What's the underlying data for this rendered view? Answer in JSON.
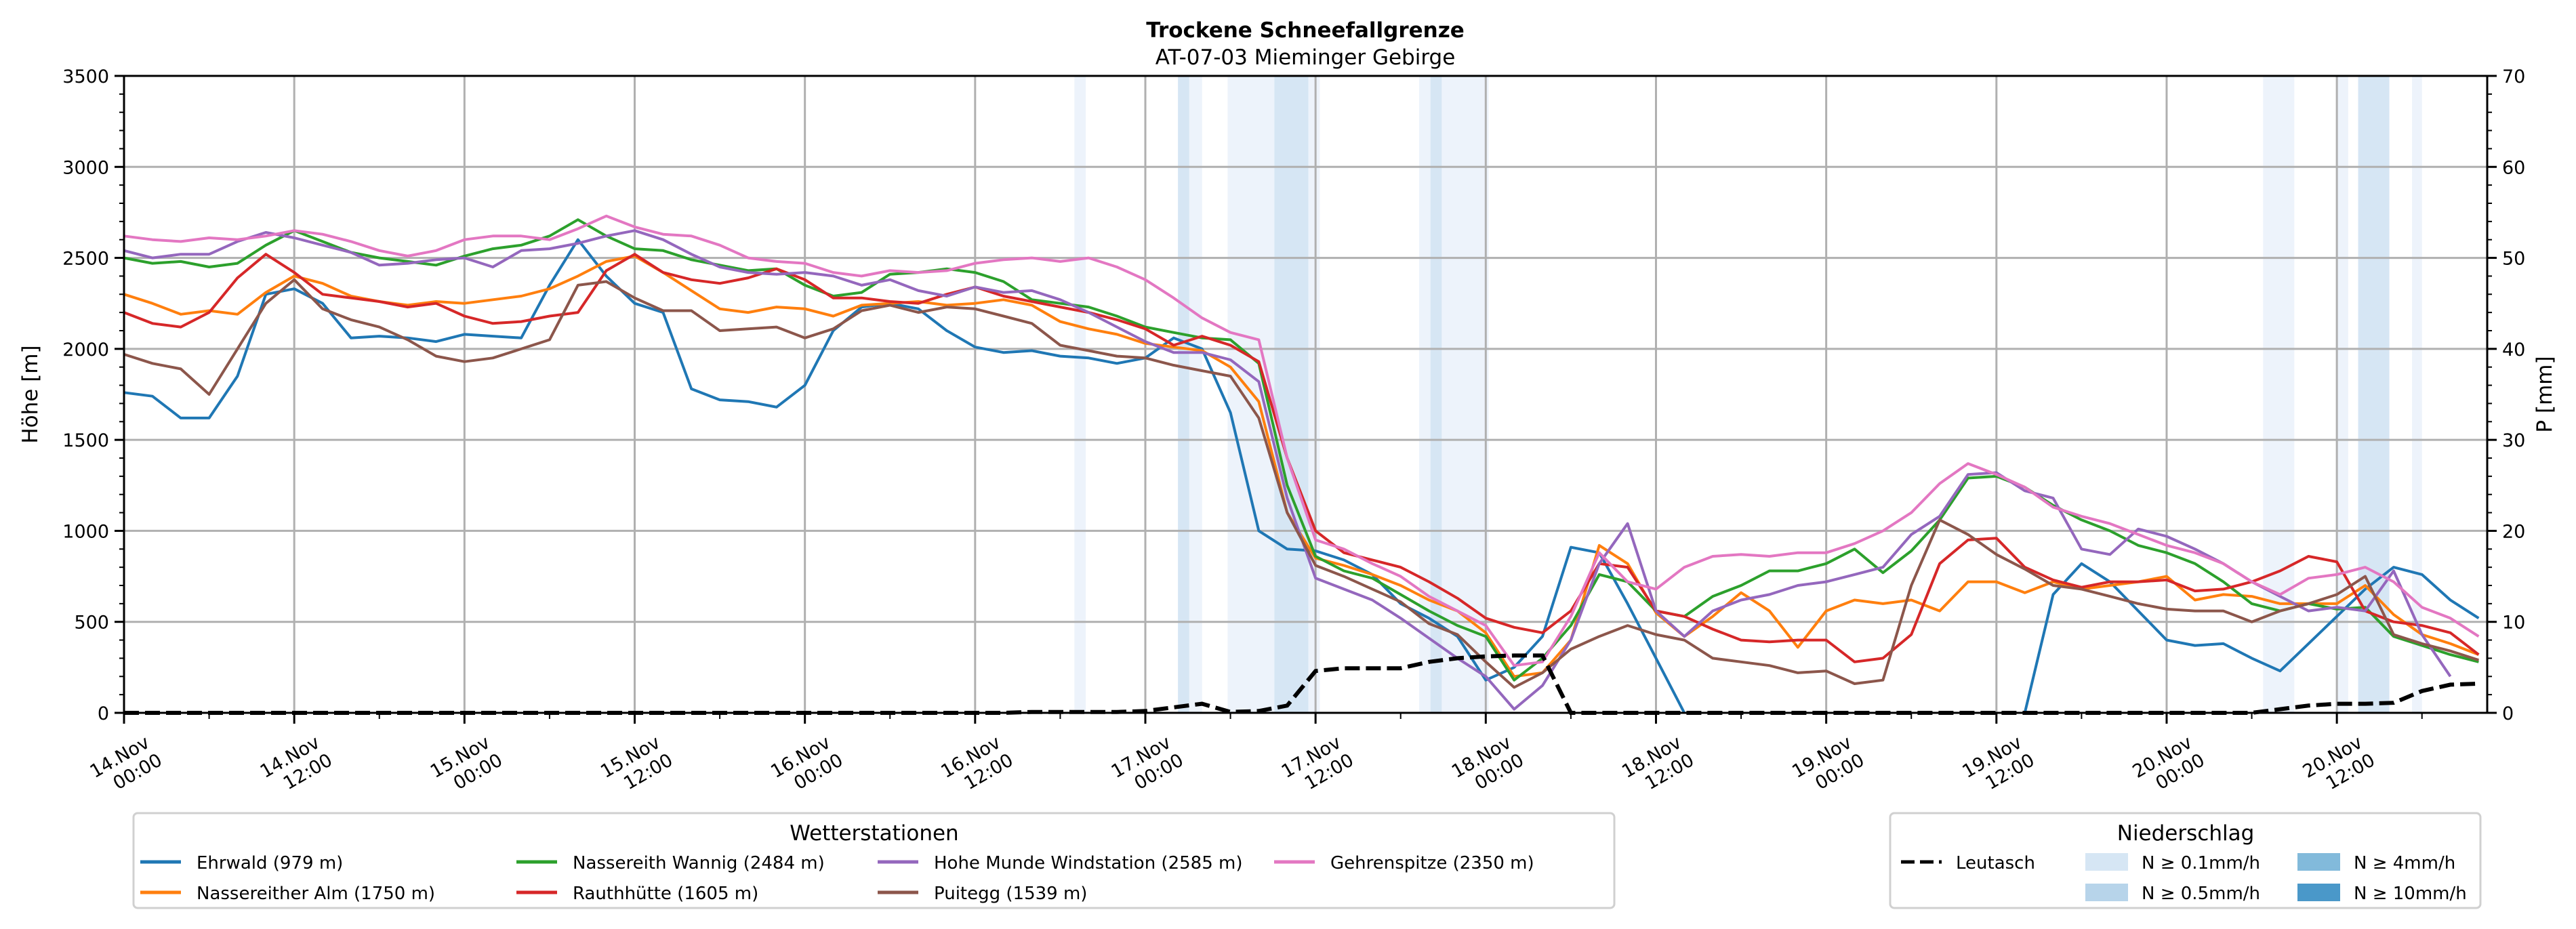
{
  "chart_data": {
    "type": "line",
    "title": "Trockene Schneefallgrenze",
    "subtitle": "AT-07-03 Mieminger Gebirge",
    "ylabel": "Höhe [m]",
    "y2label": "P [mm]",
    "ylim": [
      0,
      3500
    ],
    "y2lim": [
      0,
      70
    ],
    "yticks": [
      0,
      500,
      1000,
      1500,
      2000,
      2500,
      3000,
      3500
    ],
    "y2ticks": [
      0,
      10,
      20,
      30,
      40,
      50,
      60,
      70
    ],
    "grid": true,
    "x_unit": "hours since 14.Nov 00:00",
    "xlim": [
      0,
      166.6
    ],
    "xticks": [
      {
        "hour": 0,
        "line1": "14.Nov",
        "line2": "00:00"
      },
      {
        "hour": 12,
        "line1": "14.Nov",
        "line2": "12:00"
      },
      {
        "hour": 24,
        "line1": "15.Nov",
        "line2": "00:00"
      },
      {
        "hour": 36,
        "line1": "15.Nov",
        "line2": "12:00"
      },
      {
        "hour": 48,
        "line1": "16.Nov",
        "line2": "00:00"
      },
      {
        "hour": 60,
        "line1": "16.Nov",
        "line2": "12:00"
      },
      {
        "hour": 72,
        "line1": "17.Nov",
        "line2": "00:00"
      },
      {
        "hour": 84,
        "line1": "17.Nov",
        "line2": "12:00"
      },
      {
        "hour": 96,
        "line1": "18.Nov",
        "line2": "00:00"
      },
      {
        "hour": 108,
        "line1": "18.Nov",
        "line2": "12:00"
      },
      {
        "hour": 120,
        "line1": "19.Nov",
        "line2": "00:00"
      },
      {
        "hour": 132,
        "line1": "19.Nov",
        "line2": "12:00"
      },
      {
        "hour": 144,
        "line1": "20.Nov",
        "line2": "00:00"
      },
      {
        "hour": 156,
        "line1": "20.Nov",
        "line2": "12:00"
      }
    ],
    "x": [
      0,
      2,
      4,
      6,
      8,
      10,
      12,
      14,
      16,
      18,
      20,
      22,
      24,
      26,
      28,
      30,
      32,
      34,
      36,
      38,
      40,
      42,
      44,
      46,
      48,
      50,
      52,
      54,
      56,
      58,
      60,
      62,
      64,
      66,
      68,
      70,
      72,
      74,
      76,
      78,
      80,
      82,
      84,
      86,
      88,
      90,
      92,
      94,
      96,
      98,
      100,
      102,
      104,
      106,
      108,
      110,
      112,
      114,
      116,
      118,
      120,
      122,
      124,
      126,
      128,
      130,
      132,
      134,
      136,
      138,
      140,
      142,
      144,
      146,
      148,
      150,
      152,
      154,
      156,
      158,
      160,
      162,
      164,
      166
    ],
    "series": [
      {
        "name": "Ehrwald (979 m)",
        "color": "#1f77b4",
        "values": [
          1760,
          1740,
          1620,
          1620,
          1850,
          2300,
          2330,
          2250,
          2060,
          2070,
          2060,
          2040,
          2080,
          2070,
          2060,
          2350,
          2600,
          2400,
          2250,
          2200,
          1780,
          1720,
          1710,
          1680,
          1800,
          2100,
          2230,
          2250,
          2220,
          2100,
          2010,
          1980,
          1990,
          1960,
          1950,
          1920,
          1950,
          2060,
          2000,
          1650,
          1000,
          900,
          890,
          840,
          760,
          600,
          520,
          420,
          180,
          250,
          420,
          910,
          880,
          600,
          300,
          0,
          null,
          null,
          null,
          null,
          null,
          null,
          null,
          null,
          null,
          null,
          null,
          0,
          650,
          820,
          720,
          560,
          400,
          370,
          380,
          300,
          230,
          380,
          530,
          680,
          800,
          760,
          620,
          520
        ]
      },
      {
        "name": "Nassereither Alm (1750 m)",
        "color": "#ff7f0e",
        "values": [
          2300,
          2250,
          2190,
          2210,
          2190,
          2310,
          2400,
          2360,
          2290,
          2260,
          2240,
          2260,
          2250,
          2270,
          2290,
          2330,
          2400,
          2480,
          2510,
          2420,
          2320,
          2220,
          2200,
          2230,
          2220,
          2180,
          2240,
          2250,
          2260,
          2240,
          2250,
          2270,
          2240,
          2150,
          2110,
          2080,
          2030,
          2010,
          1990,
          1900,
          1710,
          1100,
          850,
          810,
          760,
          700,
          620,
          560,
          440,
          200,
          220,
          400,
          920,
          820,
          550,
          420,
          530,
          660,
          560,
          360,
          560,
          620,
          600,
          620,
          560,
          720,
          720,
          660,
          720,
          680,
          700,
          720,
          750,
          620,
          650,
          640,
          600,
          600,
          600,
          700,
          540,
          430,
          380,
          320
        ]
      },
      {
        "name": "Nassereith Wannig (2484 m)",
        "color": "#2ca02c",
        "values": [
          2500,
          2470,
          2480,
          2450,
          2470,
          2570,
          2650,
          2590,
          2530,
          2500,
          2480,
          2460,
          2510,
          2550,
          2570,
          2620,
          2710,
          2620,
          2550,
          2540,
          2490,
          2460,
          2430,
          2440,
          2350,
          2290,
          2310,
          2410,
          2420,
          2440,
          2420,
          2370,
          2270,
          2250,
          2230,
          2180,
          2120,
          2090,
          2060,
          2050,
          1920,
          1250,
          860,
          780,
          740,
          650,
          560,
          480,
          420,
          180,
          300,
          480,
          760,
          720,
          560,
          530,
          640,
          700,
          780,
          780,
          820,
          900,
          770,
          890,
          1060,
          1290,
          1300,
          1240,
          1140,
          1060,
          1000,
          920,
          880,
          820,
          720,
          600,
          560,
          600,
          570,
          580,
          420,
          370,
          320,
          280
        ]
      },
      {
        "name": "Rauthhütte (1605 m)",
        "color": "#d62728",
        "values": [
          2200,
          2140,
          2120,
          2200,
          2390,
          2520,
          2420,
          2300,
          2280,
          2260,
          2230,
          2250,
          2180,
          2140,
          2150,
          2180,
          2200,
          2430,
          2520,
          2420,
          2380,
          2360,
          2390,
          2440,
          2380,
          2280,
          2280,
          2260,
          2250,
          2300,
          2340,
          2290,
          2260,
          2230,
          2200,
          2160,
          2110,
          2020,
          2070,
          2020,
          1930,
          1400,
          1000,
          880,
          840,
          800,
          720,
          630,
          520,
          470,
          440,
          560,
          820,
          800,
          560,
          530,
          460,
          400,
          390,
          400,
          400,
          280,
          300,
          430,
          820,
          950,
          960,
          800,
          730,
          690,
          720,
          720,
          730,
          670,
          680,
          720,
          780,
          860,
          830,
          560,
          500,
          480,
          440,
          320
        ]
      },
      {
        "name": "Hohe Munde Windstation (2585 m)",
        "color": "#9467bd",
        "values": [
          2540,
          2500,
          2520,
          2520,
          2590,
          2640,
          2610,
          2570,
          2530,
          2460,
          2470,
          2490,
          2500,
          2450,
          2540,
          2550,
          2580,
          2620,
          2650,
          2600,
          2520,
          2450,
          2420,
          2410,
          2420,
          2400,
          2350,
          2380,
          2320,
          2290,
          2340,
          2310,
          2320,
          2270,
          2200,
          2120,
          2040,
          1980,
          1980,
          1940,
          1820,
          1180,
          740,
          680,
          620,
          520,
          410,
          300,
          200,
          20,
          150,
          400,
          820,
          1040,
          560,
          420,
          560,
          620,
          650,
          700,
          720,
          760,
          800,
          980,
          1080,
          1310,
          1320,
          1220,
          1180,
          900,
          870,
          1010,
          970,
          900,
          820,
          720,
          640,
          560,
          580,
          560,
          780,
          430,
          200,
          null
        ]
      },
      {
        "name": "Puitegg (1539 m)",
        "color": "#8c564b",
        "values": [
          1970,
          1920,
          1890,
          1750,
          2000,
          2250,
          2380,
          2220,
          2160,
          2120,
          2050,
          1960,
          1930,
          1950,
          2000,
          2050,
          2350,
          2370,
          2280,
          2210,
          2210,
          2100,
          2110,
          2120,
          2060,
          2110,
          2210,
          2240,
          2200,
          2230,
          2220,
          2180,
          2140,
          2020,
          1990,
          1960,
          1950,
          1910,
          1880,
          1850,
          1620,
          1100,
          810,
          750,
          680,
          610,
          490,
          430,
          280,
          140,
          220,
          350,
          420,
          480,
          430,
          400,
          300,
          280,
          260,
          220,
          230,
          160,
          180,
          700,
          1060,
          980,
          870,
          790,
          700,
          680,
          640,
          600,
          570,
          560,
          560,
          500,
          560,
          600,
          650,
          750,
          430,
          380,
          340,
          290
        ]
      },
      {
        "name": "Gehrenspitze (2350 m)",
        "color": "#e377c2",
        "values": [
          2620,
          2600,
          2590,
          2610,
          2600,
          2620,
          2650,
          2630,
          2590,
          2540,
          2510,
          2540,
          2600,
          2620,
          2620,
          2600,
          2660,
          2730,
          2670,
          2630,
          2620,
          2570,
          2500,
          2480,
          2470,
          2420,
          2400,
          2430,
          2420,
          2430,
          2470,
          2490,
          2500,
          2480,
          2500,
          2450,
          2380,
          2280,
          2170,
          2090,
          2050,
          1400,
          950,
          900,
          820,
          750,
          640,
          560,
          480,
          260,
          280,
          530,
          880,
          720,
          680,
          800,
          860,
          870,
          860,
          880,
          880,
          930,
          1000,
          1100,
          1260,
          1370,
          1310,
          1240,
          1130,
          1080,
          1040,
          980,
          920,
          880,
          820,
          720,
          650,
          740,
          760,
          800,
          720,
          580,
          520,
          420
        ]
      }
    ],
    "precip_series": {
      "name": "Leutasch",
      "color": "#000000",
      "style": "dashed",
      "axis": "right",
      "values": [
        0,
        0,
        0,
        0,
        0,
        0,
        0,
        0,
        0,
        0,
        0,
        0,
        0,
        0,
        0,
        0,
        0,
        0,
        0,
        0,
        0,
        0,
        0,
        0,
        0,
        0,
        0,
        0,
        0,
        0,
        0,
        0,
        0.1,
        0.1,
        0.1,
        0.1,
        0.2,
        0.6,
        1.0,
        0.1,
        0.2,
        0.8,
        4.6,
        4.9,
        4.9,
        4.9,
        5.6,
        6.0,
        6.2,
        6.3,
        6.3,
        0,
        0,
        0,
        0,
        0,
        0,
        0,
        0,
        0,
        0,
        0,
        0,
        0,
        0,
        0,
        0,
        0,
        0,
        0,
        0,
        0,
        0,
        0,
        0,
        0,
        0.4,
        0.8,
        1.0,
        1.0,
        1.1,
        2.4,
        3.1,
        3.2
      ]
    },
    "precip_bands": [
      {
        "start": 67.0,
        "end": 67.8,
        "level": "N ≥ 0.1mm/h"
      },
      {
        "start": 74.3,
        "end": 75.1,
        "level": "N ≥ 0.5mm/h"
      },
      {
        "start": 75.1,
        "end": 76.0,
        "level": "N ≥ 0.1mm/h"
      },
      {
        "start": 77.8,
        "end": 81.1,
        "level": "N ≥ 0.1mm/h"
      },
      {
        "start": 81.1,
        "end": 83.5,
        "level": "N ≥ 0.5mm/h"
      },
      {
        "start": 83.5,
        "end": 84.3,
        "level": "N ≥ 0.1mm/h"
      },
      {
        "start": 91.3,
        "end": 92.1,
        "level": "N ≥ 0.1mm/h"
      },
      {
        "start": 92.1,
        "end": 92.9,
        "level": "N ≥ 0.5mm/h"
      },
      {
        "start": 92.9,
        "end": 96.2,
        "level": "N ≥ 0.1mm/h"
      },
      {
        "start": 150.8,
        "end": 153.0,
        "level": "N ≥ 0.1mm/h"
      },
      {
        "start": 156.0,
        "end": 156.8,
        "level": "N ≥ 0.1mm/h"
      },
      {
        "start": 157.5,
        "end": 159.7,
        "level": "N ≥ 0.5mm/h"
      },
      {
        "start": 161.3,
        "end": 162.0,
        "level": "N ≥ 0.1mm/h"
      }
    ],
    "legend_stations": {
      "title": "Wetterstationen",
      "placement": "bottom-left"
    },
    "legend_precip": {
      "title": "Niederschlag",
      "placement": "bottom-right",
      "line_entry": "Leutasch",
      "levels": [
        {
          "label": "N ≥ 0.1mm/h",
          "color": "#d6e6f4"
        },
        {
          "label": "N ≥ 0.5mm/h",
          "color": "#b7d4ea"
        },
        {
          "label": "N ≥ 4mm/h",
          "color": "#82badb"
        },
        {
          "label": "N ≥ 10mm/h",
          "color": "#4a98c9"
        }
      ]
    }
  }
}
